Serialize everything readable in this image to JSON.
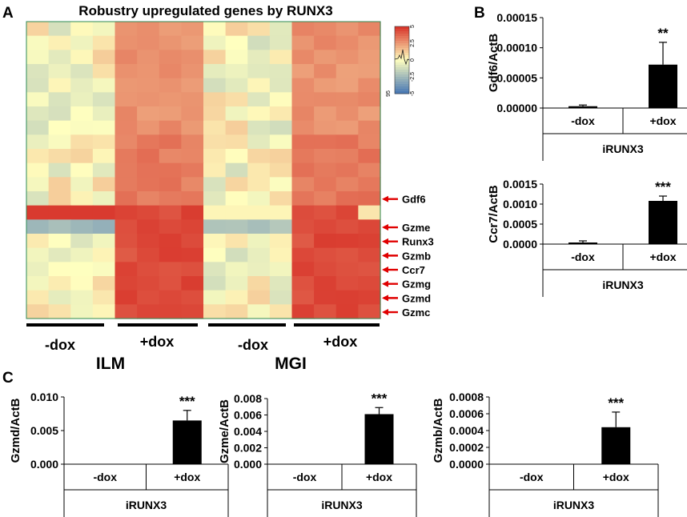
{
  "panels": {
    "a": "A",
    "b": "B",
    "c": "C"
  },
  "heatmap": {
    "title": "Robustry upregulated genes by RUNX3",
    "groups": [
      "-dox",
      "+dox",
      "-dox",
      "+dox"
    ],
    "cell_lines": [
      "ILM",
      "MGI"
    ],
    "gene_labels": [
      {
        "gene": "Gdf6",
        "row": 12
      },
      {
        "gene": "Gzme",
        "row": 14
      },
      {
        "gene": "Runx3",
        "row": 15
      },
      {
        "gene": "Gzmb",
        "row": 16
      },
      {
        "gene": "Ccr7",
        "row": 17
      },
      {
        "gene": "Gzmg",
        "row": 18
      },
      {
        "gene": "Gzmd",
        "row": 19
      },
      {
        "gene": "Gzmc",
        "row": 20
      }
    ],
    "colorscale": {
      "min_label": "95",
      "ticks": [
        "5",
        "2.5",
        "0",
        "-2.5",
        "-5"
      ],
      "high": "#d73027",
      "mid": "#ffffbf",
      "low": "#4575b4"
    }
  },
  "chart_data": [
    {
      "id": "gdf6",
      "type": "bar",
      "title": "",
      "categories": [
        "-dox",
        "+dox"
      ],
      "values": [
        3e-06,
        7.2e-05
      ],
      "errors": [
        2e-06,
        3.7e-05
      ],
      "ylabel": "Gdf6/ActB",
      "xlabel": "iRUNX3",
      "ylim": [
        0,
        0.00015
      ],
      "yticks": [
        "0.00000",
        "0.00005",
        "0.00010",
        "0.00015"
      ],
      "significance": "**"
    },
    {
      "id": "ccr7",
      "type": "bar",
      "title": "",
      "categories": [
        "-dox",
        "+dox"
      ],
      "values": [
        4e-05,
        0.00108
      ],
      "errors": [
        4e-05,
        0.00012
      ],
      "ylabel": "Ccr7/ActB",
      "xlabel": "iRUNX3",
      "ylim": [
        0,
        0.0015
      ],
      "yticks": [
        "0.0000",
        "0.0005",
        "0.0010",
        "0.0015"
      ],
      "significance": "***"
    },
    {
      "id": "gzmd",
      "type": "bar",
      "title": "",
      "categories": [
        "-dox",
        "+dox"
      ],
      "values": [
        0.0,
        0.0065
      ],
      "errors": [
        0.0,
        0.0015
      ],
      "ylabel": "Gzmd/ActB",
      "xlabel": "iRUNX3",
      "ylim": [
        0,
        0.01
      ],
      "yticks": [
        "0.000",
        "0.005",
        "0.010"
      ],
      "significance": "***"
    },
    {
      "id": "gzme",
      "type": "bar",
      "title": "",
      "categories": [
        "-dox",
        "+dox"
      ],
      "values": [
        0.0,
        0.0061
      ],
      "errors": [
        0.0,
        0.0008
      ],
      "ylabel": "Gzme/ActB",
      "xlabel": "iRUNX3",
      "ylim": [
        0,
        0.008
      ],
      "yticks": [
        "0.000",
        "0.002",
        "0.004",
        "0.006",
        "0.008"
      ],
      "significance": "***"
    },
    {
      "id": "gzmb",
      "type": "bar",
      "title": "",
      "categories": [
        "-dox",
        "+dox"
      ],
      "values": [
        0.0,
        0.00044
      ],
      "errors": [
        0.0,
        0.00018
      ],
      "ylabel": "Gzmb/ActB",
      "xlabel": "iRUNX3",
      "ylim": [
        0,
        0.0008
      ],
      "yticks": [
        "0.0000",
        "0.0002",
        "0.0004",
        "0.0006",
        "0.0008"
      ],
      "significance": "***"
    }
  ]
}
